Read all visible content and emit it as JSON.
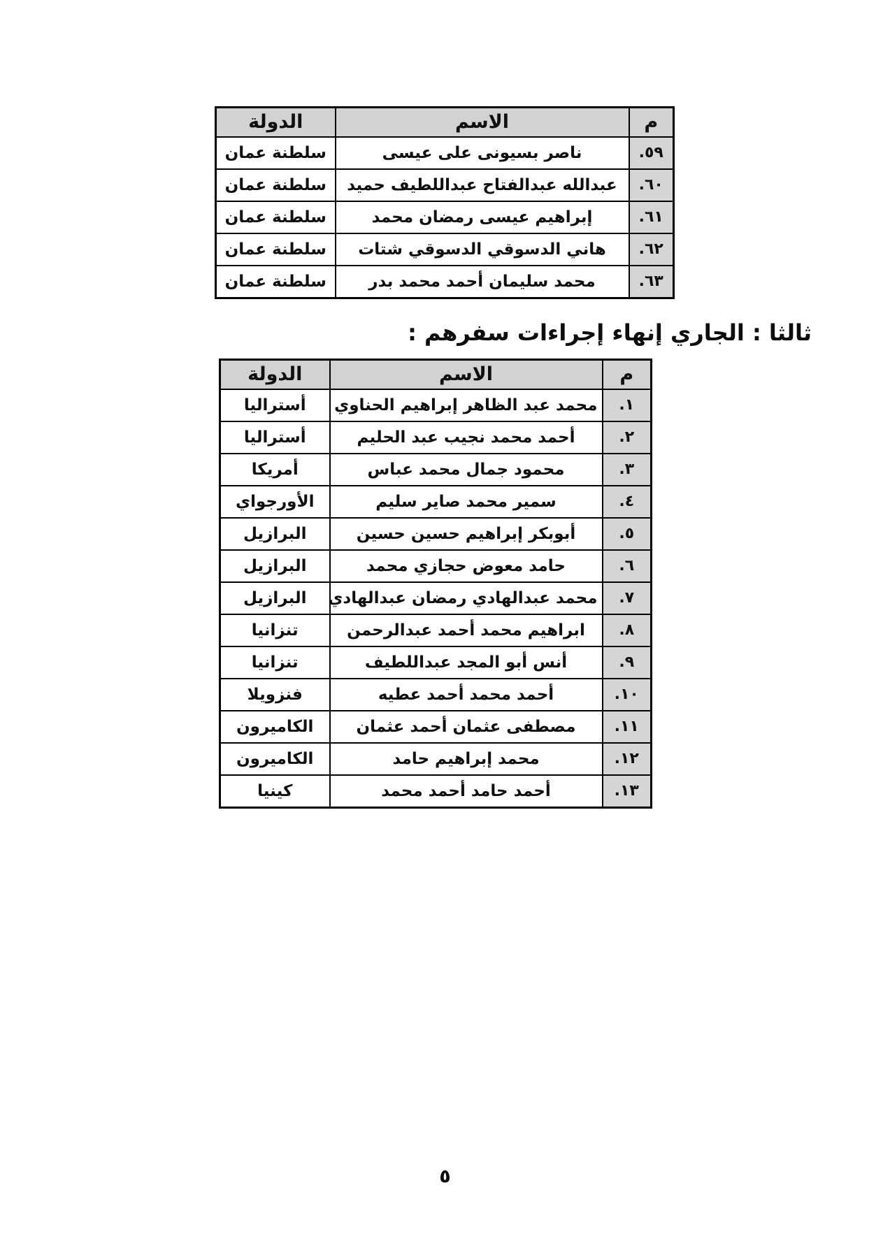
{
  "section_heading": "ثالثا : الجاري إنهاء إجراءات سفرهم :",
  "page": {
    "number": "٥"
  },
  "colors": {
    "header_bg": "#d2d2d2",
    "index_cell_bg": "#d5d5d5",
    "border": "#000000",
    "text": "#101010",
    "page_bg": "#ffffff"
  },
  "tables": [
    {
      "id": "departed-oman-continued",
      "headers": {
        "index": "م",
        "name": "الاسم",
        "country": "الدولة"
      },
      "rows": [
        {
          "index": "٥٩.",
          "name": "ناصر بسيونى على عيسى",
          "country": "سلطنة عمان"
        },
        {
          "index": "٦٠.",
          "name": "عبدالله عبدالفتاح عبداللطيف حميد",
          "country": "سلطنة عمان"
        },
        {
          "index": "٦١.",
          "name": "إبراهيم عيسى رمضان محمد",
          "country": "سلطنة عمان"
        },
        {
          "index": "٦٢.",
          "name": "هاني الدسوقي الدسوقي شتات",
          "country": "سلطنة عمان"
        },
        {
          "index": "٦٣.",
          "name": "محمد سليمان أحمد محمد بدر",
          "country": "سلطنة عمان"
        }
      ]
    },
    {
      "id": "travel-procedures-in-progress",
      "headers": {
        "index": "م",
        "name": "الاسم",
        "country": "الدولة"
      },
      "rows": [
        {
          "index": "١.",
          "name": "محمد عبد الظاهر إبراهيم الحناوي",
          "country": "أستراليا"
        },
        {
          "index": "٢.",
          "name": "أحمد محمد نجيب عبد الحليم",
          "country": "أستراليا"
        },
        {
          "index": "٣.",
          "name": "محمود جمال محمد عباس",
          "country": "أمريكا"
        },
        {
          "index": "٤.",
          "name": "سمير محمد صاير سليم",
          "country": "الأورجواي"
        },
        {
          "index": "٥.",
          "name": "أبوبكر إبراهيم حسين حسين",
          "country": "البرازيل"
        },
        {
          "index": "٦.",
          "name": "حامد معوض حجازي محمد",
          "country": "البرازيل"
        },
        {
          "index": "٧.",
          "name": "محمد عبدالهادي رمضان عبدالهادي",
          "country": "البرازيل"
        },
        {
          "index": "٨.",
          "name": "ابراهيم محمد أحمد عبدالرحمن",
          "country": "تنزانيا"
        },
        {
          "index": "٩.",
          "name": "أنس أبو المجد عبداللطيف",
          "country": "تنزانيا"
        },
        {
          "index": "١٠.",
          "name": "أحمد محمد أحمد عطيه",
          "country": "فنزويلا"
        },
        {
          "index": "١١.",
          "name": "مصطفى عثمان أحمد عثمان",
          "country": "الكاميرون"
        },
        {
          "index": "١٢.",
          "name": "محمد إبراهيم حامد",
          "country": "الكاميرون"
        },
        {
          "index": "١٣.",
          "name": "أحمد حامد أحمد محمد",
          "country": "كينيا"
        }
      ]
    }
  ]
}
